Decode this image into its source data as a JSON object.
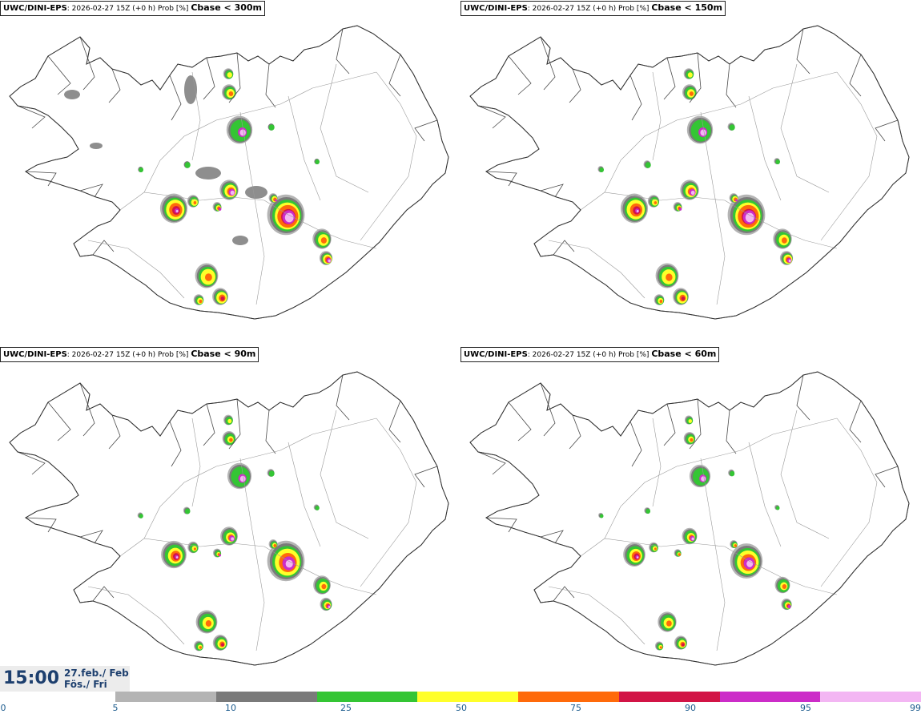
{
  "panels": [
    {
      "model": "UWC/DINI-EPS",
      "run": ": 2026-02-27 15Z (+0 h) Prob [%] ",
      "threshold": "Cbase < 300m"
    },
    {
      "model": "UWC/DINI-EPS",
      "run": ": 2026-02-27 15Z (+0 h) Prob [%] ",
      "threshold": "Cbase < 150m"
    },
    {
      "model": "UWC/DINI-EPS",
      "run": ": 2026-02-27 15Z (+0 h) Prob [%] ",
      "threshold": "Cbase < 90m"
    },
    {
      "model": "UWC/DINI-EPS",
      "run": ": 2026-02-27 15Z (+0 h) Prob [%] ",
      "threshold": "Cbase < 60m"
    }
  ],
  "time": {
    "clock": "15:00",
    "date": "27.feb./ Feb",
    "day": "Fös./ Fri"
  },
  "colorbar": {
    "ticks": [
      "0",
      "5",
      "10",
      "25",
      "50",
      "75",
      "90",
      "95",
      "99"
    ],
    "colors": [
      "#b4b4b4",
      "#7a7a7a",
      "#34c534",
      "#ffff2a",
      "#ff6a0a",
      "#d21446",
      "#cc2cc8",
      "#f3b6f3"
    ]
  },
  "cells": [
    {
      "x": 299,
      "y": 162,
      "s": 1.8,
      "v": [
        1,
        1,
        1,
        0,
        0,
        0,
        1,
        1
      ]
    },
    {
      "x": 286,
      "y": 237,
      "s": 1.3,
      "v": [
        1,
        1,
        1,
        0.7,
        0.5,
        0.4,
        0.9,
        0.7
      ]
    },
    {
      "x": 357,
      "y": 268,
      "s": 2.6,
      "v": [
        1,
        1,
        1,
        1,
        0.8,
        0.6,
        1,
        0.8
      ]
    },
    {
      "x": 217,
      "y": 260,
      "s": 1.9,
      "v": [
        1,
        1,
        1,
        0.8,
        0.6,
        0.4,
        0.2,
        0.1
      ]
    },
    {
      "x": 258,
      "y": 344,
      "s": 1.6,
      "v": [
        1,
        1,
        1,
        0.7,
        0.3,
        0,
        0,
        0
      ]
    },
    {
      "x": 275,
      "y": 370,
      "s": 1.1,
      "v": [
        1,
        1,
        1,
        0.8,
        0.5,
        0.3,
        0,
        0
      ]
    },
    {
      "x": 248,
      "y": 374,
      "s": 0.7,
      "v": [
        1,
        1,
        1,
        0.6,
        0.3,
        0,
        0,
        0
      ]
    },
    {
      "x": 402,
      "y": 298,
      "s": 1.3,
      "v": [
        1,
        1,
        1,
        0.6,
        0.3,
        0,
        0,
        0
      ]
    },
    {
      "x": 407,
      "y": 322,
      "s": 0.9,
      "v": [
        1,
        1,
        1,
        0.8,
        0.6,
        0.5,
        0.8,
        0.6
      ]
    },
    {
      "x": 286,
      "y": 115,
      "s": 1.0,
      "v": [
        1,
        1,
        1,
        0.6,
        0.3,
        0,
        0,
        0
      ]
    },
    {
      "x": 285,
      "y": 92,
      "s": 0.7,
      "v": [
        1,
        1,
        1,
        0.5,
        0,
        0,
        0,
        0
      ]
    },
    {
      "x": 241,
      "y": 251,
      "s": 0.8,
      "v": [
        1,
        1,
        1,
        0.6,
        0.2,
        0,
        0,
        0
      ]
    },
    {
      "x": 271,
      "y": 258,
      "s": 0.6,
      "v": [
        1,
        1,
        1,
        0.6,
        0.5,
        0.3,
        0.7,
        0
      ]
    },
    {
      "x": 341,
      "y": 247,
      "s": 0.6,
      "v": [
        1,
        1,
        1,
        0.7,
        0.5,
        0,
        0.5,
        0
      ]
    },
    {
      "x": 233,
      "y": 205,
      "s": 0.5,
      "v": [
        1,
        1,
        1,
        0,
        0,
        0,
        0,
        0
      ]
    },
    {
      "x": 338,
      "y": 158,
      "s": 0.5,
      "v": [
        1,
        1,
        1,
        0,
        0,
        0,
        0,
        0
      ]
    },
    {
      "x": 175,
      "y": 211,
      "s": 0.4,
      "v": [
        1,
        1,
        1,
        0,
        0,
        0,
        0,
        0
      ]
    },
    {
      "x": 395,
      "y": 201,
      "s": 0.4,
      "v": [
        1,
        1,
        1,
        0,
        0,
        0,
        0,
        0
      ]
    }
  ]
}
